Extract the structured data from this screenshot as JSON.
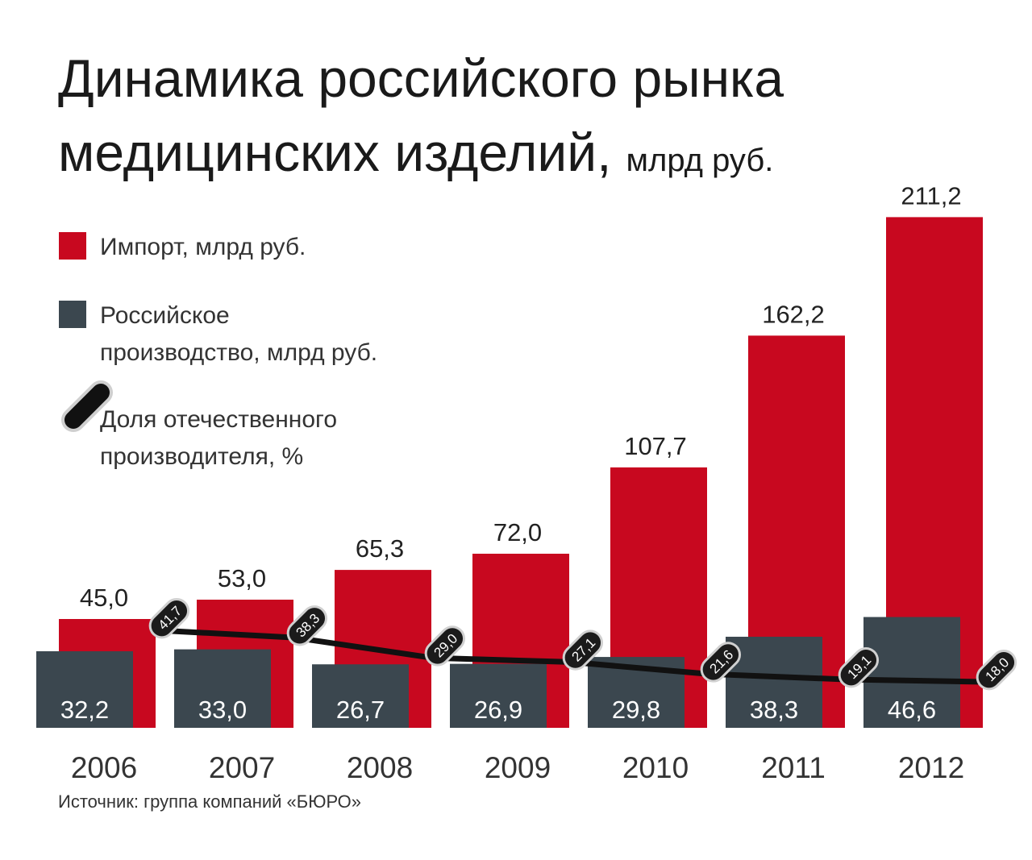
{
  "title_line1": "Динамика российского рынка",
  "title_line2": "медицинских изделий,",
  "title_unit": "млрд руб.",
  "legend": {
    "import": "Импорт, млрд руб.",
    "domestic_line1": "Российское",
    "domestic_line2": "производство, млрд руб.",
    "share_line1": "Доля отечественного",
    "share_line2": "производителя, %"
  },
  "source": "Источник: группа компаний «БЮРО»",
  "colors": {
    "import": "#c8081f",
    "domestic": "#3b474f",
    "share_line": "#111111",
    "marker": "#1b1b1b"
  },
  "chart_data": {
    "type": "bar",
    "title": "Динамика российского рынка медицинских изделий, млрд руб.",
    "categories": [
      "2006",
      "2007",
      "2008",
      "2009",
      "2010",
      "2011",
      "2012"
    ],
    "series": [
      {
        "name": "Импорт, млрд руб.",
        "values": [
          45.0,
          53.0,
          65.3,
          72.0,
          107.7,
          162.2,
          211.2
        ],
        "labels": [
          "45,0",
          "53,0",
          "65,3",
          "72,0",
          "107,7",
          "162,2",
          "211,2"
        ]
      },
      {
        "name": "Российское производство, млрд руб.",
        "values": [
          32.2,
          33.0,
          26.7,
          26.9,
          29.8,
          38.3,
          46.6
        ],
        "labels": [
          "32,2",
          "33,0",
          "26,7",
          "26,9",
          "29,8",
          "38,3",
          "46,6"
        ]
      },
      {
        "name": "Доля отечественного производителя, %",
        "type": "line",
        "values": [
          41.7,
          38.3,
          29.0,
          27.1,
          21.6,
          19.1,
          18.0
        ],
        "labels": [
          "41,7",
          "38,3",
          "29,0",
          "27,1",
          "21,6",
          "19,1",
          "18,0"
        ]
      }
    ],
    "xlabel": "",
    "ylabel": "",
    "ylim": [
      0,
      211.2
    ]
  }
}
